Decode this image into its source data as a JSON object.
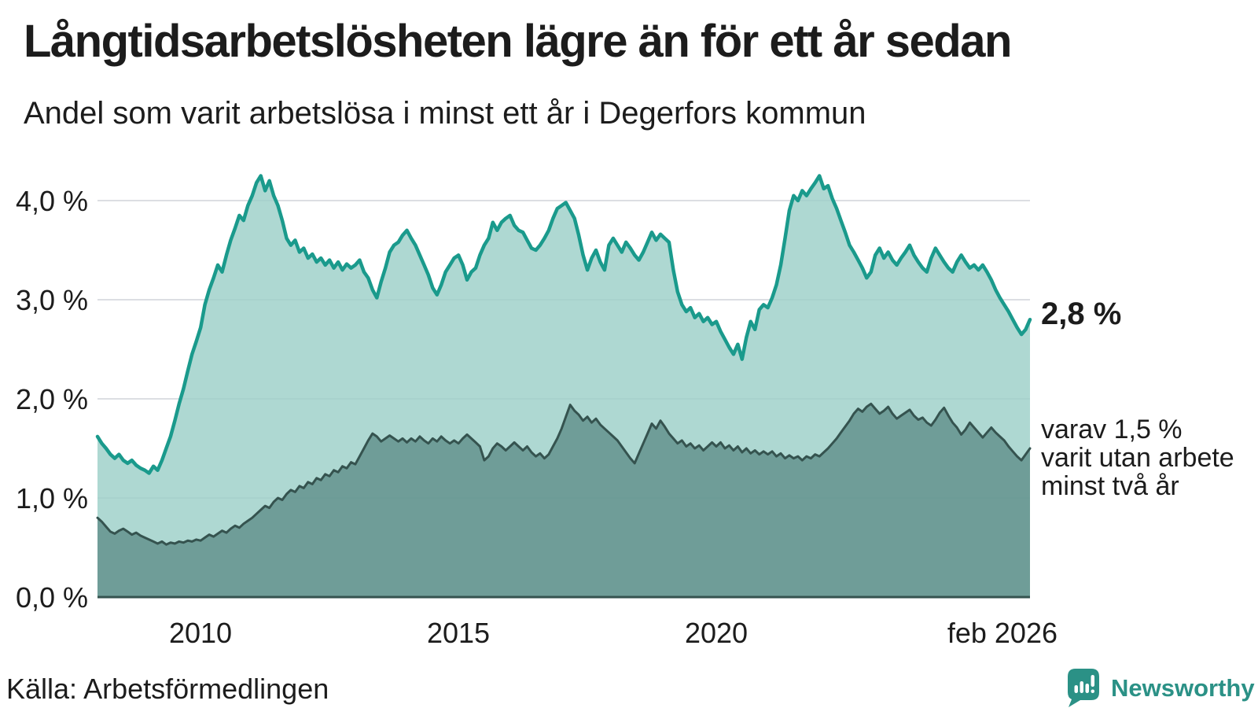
{
  "header": {
    "title": "Långtidsarbetslösheten lägre än för ett år sedan",
    "subtitle": "Andel som varit arbetslösa i minst ett år i Degerfors kommun"
  },
  "footer": {
    "source": "Källa: Arbetsförmedlingen",
    "logo_text": "Newsworthy"
  },
  "colors": {
    "teal_line": "#1a9a8c",
    "teal_fill": "#9ccfc8",
    "dark_fill": "#5a8984",
    "dark_line": "#35534f",
    "grid": "#dcdee3",
    "logo_teal": "#2b9186",
    "text": "#1c1c1c"
  },
  "chart_data": {
    "type": "area",
    "title": "Långtidsarbetslösheten lägre än för ett år sedan",
    "subtitle": "Andel som varit arbetslösa i minst ett år i Degerfors kommun",
    "x_start": "2008-01",
    "x_end": "2026-02",
    "x_tick_labels": [
      "2010",
      "2015",
      "2020",
      "feb 2026"
    ],
    "x_tick_month_index": [
      24,
      84,
      144,
      217
    ],
    "y_tick_labels": [
      "0,0 %",
      "1,0 %",
      "2,0 %",
      "3,0 %",
      "4,0 %"
    ],
    "y_tick_values": [
      0,
      1,
      2,
      3,
      4
    ],
    "ylim": [
      0,
      4.35
    ],
    "grid": "horizontal",
    "legend_position": "right-annotations",
    "series": [
      {
        "name": "Arbetslösa minst ett år",
        "end_label": "2,8 %",
        "end_value": 2.8,
        "values": [
          1.62,
          1.55,
          1.5,
          1.44,
          1.4,
          1.44,
          1.38,
          1.35,
          1.38,
          1.33,
          1.3,
          1.28,
          1.25,
          1.32,
          1.28,
          1.38,
          1.5,
          1.62,
          1.78,
          1.95,
          2.1,
          2.28,
          2.45,
          2.58,
          2.72,
          2.95,
          3.1,
          3.22,
          3.35,
          3.28,
          3.45,
          3.6,
          3.72,
          3.85,
          3.8,
          3.95,
          4.05,
          4.18,
          4.25,
          4.1,
          4.2,
          4.05,
          3.95,
          3.8,
          3.62,
          3.55,
          3.6,
          3.48,
          3.52,
          3.42,
          3.46,
          3.38,
          3.42,
          3.35,
          3.4,
          3.32,
          3.38,
          3.3,
          3.36,
          3.32,
          3.35,
          3.4,
          3.28,
          3.22,
          3.1,
          3.02,
          3.18,
          3.32,
          3.48,
          3.55,
          3.58,
          3.65,
          3.7,
          3.62,
          3.55,
          3.45,
          3.35,
          3.25,
          3.12,
          3.05,
          3.15,
          3.28,
          3.35,
          3.42,
          3.45,
          3.35,
          3.2,
          3.28,
          3.32,
          3.45,
          3.55,
          3.62,
          3.78,
          3.7,
          3.78,
          3.82,
          3.85,
          3.75,
          3.7,
          3.68,
          3.6,
          3.52,
          3.5,
          3.55,
          3.62,
          3.7,
          3.82,
          3.92,
          3.95,
          3.98,
          3.9,
          3.82,
          3.65,
          3.45,
          3.3,
          3.42,
          3.5,
          3.38,
          3.3,
          3.55,
          3.62,
          3.55,
          3.48,
          3.58,
          3.52,
          3.45,
          3.4,
          3.48,
          3.58,
          3.68,
          3.6,
          3.66,
          3.62,
          3.58,
          3.3,
          3.08,
          2.95,
          2.88,
          2.92,
          2.82,
          2.86,
          2.78,
          2.82,
          2.75,
          2.78,
          2.68,
          2.6,
          2.52,
          2.45,
          2.55,
          2.4,
          2.62,
          2.78,
          2.7,
          2.9,
          2.95,
          2.92,
          3.02,
          3.15,
          3.35,
          3.62,
          3.9,
          4.05,
          4.0,
          4.1,
          4.05,
          4.12,
          4.18,
          4.25,
          4.12,
          4.15,
          4.02,
          3.92,
          3.8,
          3.68,
          3.55,
          3.48,
          3.4,
          3.32,
          3.22,
          3.28,
          3.45,
          3.52,
          3.42,
          3.48,
          3.4,
          3.35,
          3.42,
          3.48,
          3.55,
          3.45,
          3.38,
          3.32,
          3.28,
          3.42,
          3.52,
          3.45,
          3.38,
          3.32,
          3.28,
          3.38,
          3.45,
          3.38,
          3.32,
          3.35,
          3.3,
          3.35,
          3.28,
          3.2,
          3.1,
          3.02,
          2.95,
          2.88,
          2.8,
          2.72,
          2.65,
          2.7,
          2.8
        ]
      },
      {
        "name": "varav utan arbete minst två år",
        "end_label_lines": [
          "varav 1,5 %",
          "varit utan arbete",
          "minst två år"
        ],
        "end_value": 1.5,
        "values": [
          0.8,
          0.76,
          0.71,
          0.66,
          0.64,
          0.67,
          0.69,
          0.66,
          0.63,
          0.65,
          0.62,
          0.6,
          0.58,
          0.56,
          0.54,
          0.56,
          0.53,
          0.55,
          0.54,
          0.56,
          0.55,
          0.57,
          0.56,
          0.58,
          0.57,
          0.6,
          0.63,
          0.61,
          0.64,
          0.67,
          0.65,
          0.69,
          0.72,
          0.7,
          0.74,
          0.77,
          0.8,
          0.84,
          0.88,
          0.92,
          0.9,
          0.96,
          1.0,
          0.98,
          1.04,
          1.08,
          1.06,
          1.12,
          1.1,
          1.16,
          1.14,
          1.2,
          1.18,
          1.24,
          1.22,
          1.28,
          1.26,
          1.32,
          1.3,
          1.36,
          1.34,
          1.42,
          1.5,
          1.58,
          1.65,
          1.62,
          1.57,
          1.6,
          1.63,
          1.6,
          1.57,
          1.6,
          1.56,
          1.6,
          1.57,
          1.62,
          1.58,
          1.55,
          1.6,
          1.57,
          1.62,
          1.58,
          1.55,
          1.58,
          1.55,
          1.6,
          1.64,
          1.6,
          1.56,
          1.52,
          1.38,
          1.42,
          1.5,
          1.55,
          1.52,
          1.48,
          1.52,
          1.56,
          1.52,
          1.48,
          1.52,
          1.46,
          1.42,
          1.45,
          1.4,
          1.44,
          1.52,
          1.6,
          1.7,
          1.82,
          1.94,
          1.88,
          1.84,
          1.78,
          1.82,
          1.76,
          1.8,
          1.74,
          1.7,
          1.66,
          1.62,
          1.58,
          1.52,
          1.46,
          1.4,
          1.35,
          1.45,
          1.55,
          1.65,
          1.75,
          1.7,
          1.78,
          1.72,
          1.65,
          1.6,
          1.55,
          1.58,
          1.52,
          1.55,
          1.5,
          1.53,
          1.48,
          1.52,
          1.56,
          1.52,
          1.56,
          1.5,
          1.53,
          1.48,
          1.52,
          1.46,
          1.5,
          1.45,
          1.48,
          1.44,
          1.47,
          1.44,
          1.47,
          1.42,
          1.45,
          1.4,
          1.43,
          1.4,
          1.42,
          1.38,
          1.42,
          1.4,
          1.44,
          1.42,
          1.46,
          1.5,
          1.55,
          1.6,
          1.66,
          1.72,
          1.78,
          1.85,
          1.9,
          1.87,
          1.92,
          1.95,
          1.9,
          1.85,
          1.88,
          1.92,
          1.85,
          1.8,
          1.83,
          1.86,
          1.89,
          1.83,
          1.79,
          1.81,
          1.76,
          1.73,
          1.79,
          1.86,
          1.91,
          1.83,
          1.76,
          1.71,
          1.64,
          1.69,
          1.76,
          1.71,
          1.66,
          1.61,
          1.66,
          1.71,
          1.66,
          1.62,
          1.58,
          1.52,
          1.47,
          1.42,
          1.38,
          1.44,
          1.5
        ]
      }
    ]
  }
}
